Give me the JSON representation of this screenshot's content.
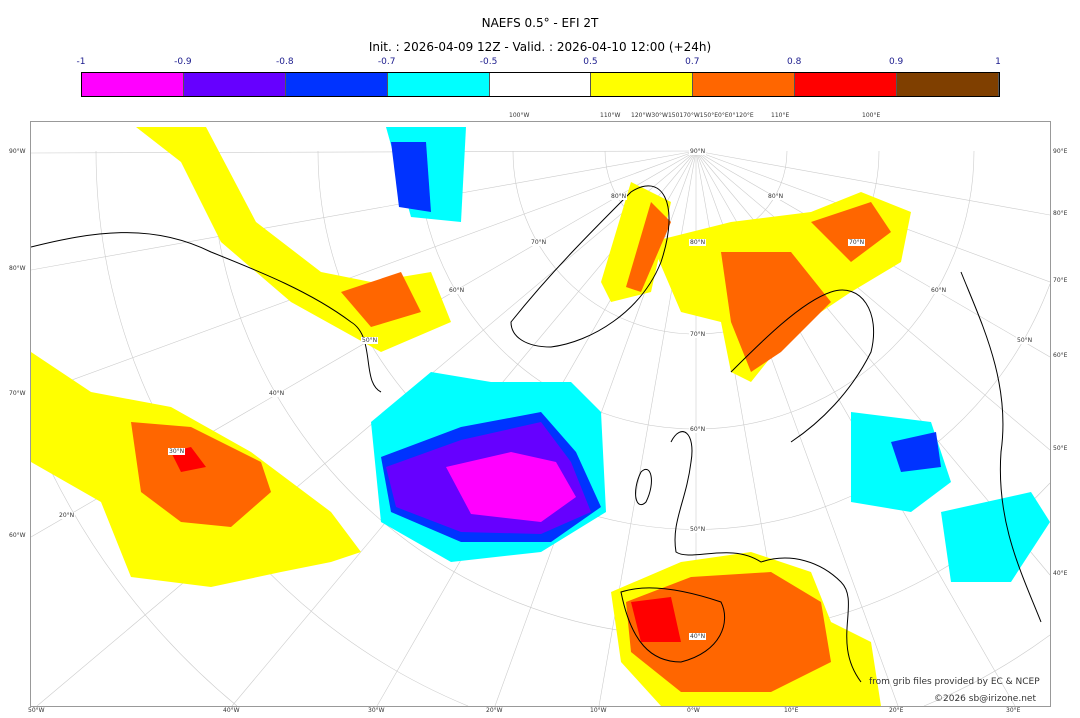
{
  "header": {
    "title": "NAEFS 0.5° - EFI 2T",
    "subtitle": "Init. : 2026-04-09 12Z - Valid. : 2026-04-10 12:00 (+24h)"
  },
  "colorbar": {
    "ticks": [
      "-1",
      "-0.9",
      "-0.8",
      "-0.7",
      "-0.5",
      "0.5",
      "0.7",
      "0.8",
      "0.9",
      "1"
    ],
    "colors": [
      "#ff00ff",
      "#6600ff",
      "#0033ff",
      "#00ffff",
      "#ffffff",
      "#ffff00",
      "#ff6600",
      "#ff0000",
      "#7f3f00"
    ]
  },
  "axes": {
    "left": [
      "90°W",
      "80°W",
      "70°W",
      "60°W"
    ],
    "right": [
      "90°E",
      "80°E",
      "70°E",
      "60°E",
      "50°E",
      "40°E"
    ],
    "bottom": [
      "50°W",
      "40°W",
      "30°W",
      "20°W",
      "10°W",
      "0°W",
      "10°E",
      "20°E",
      "30°E"
    ],
    "top": [
      "100°W",
      "110°W",
      "120°W30°W150170°W150°E0°E0°120°E",
      "110°E",
      "100°E"
    ]
  },
  "grid_labels": [
    "90°N",
    "80°N",
    "70°N",
    "60°N",
    "50°N",
    "40°N",
    "30°N",
    "20°N",
    "40°N",
    "50°N",
    "60°N",
    "70°N",
    "80°N",
    "80°N",
    "70°N",
    "60°N",
    "50°N"
  ],
  "credits": {
    "source": "from grib files provided by EC & NCEP",
    "copyright": "©2026 sb@irizone.net"
  }
}
